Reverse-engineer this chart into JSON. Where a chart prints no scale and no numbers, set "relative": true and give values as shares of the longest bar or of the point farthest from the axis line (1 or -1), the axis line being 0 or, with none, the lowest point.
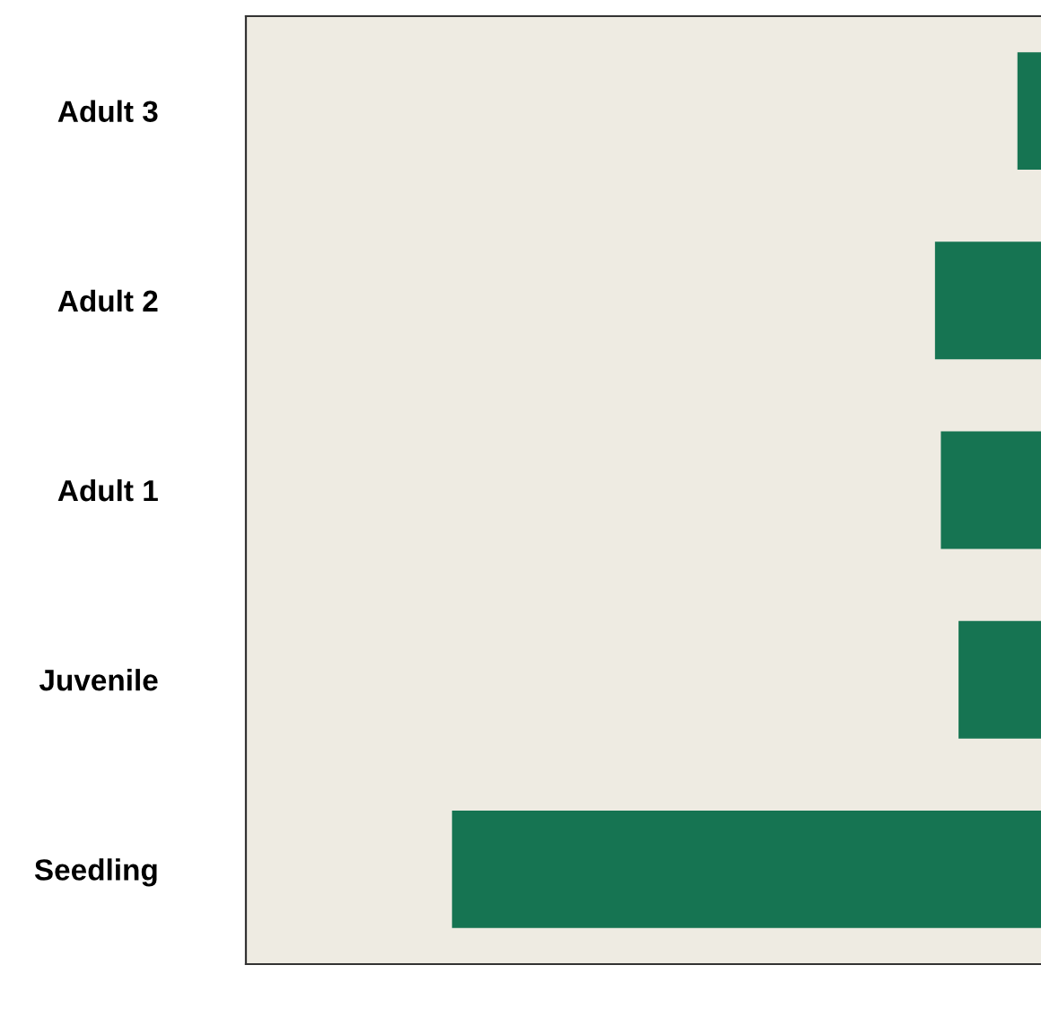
{
  "chart_data": {
    "type": "bar",
    "orientation": "horizontal",
    "relative": true,
    "categories": [
      "Adult 3",
      "Adult 2",
      "Adult 1",
      "Juvenile",
      "Seedling"
    ],
    "values": [
      -0.04,
      -0.18,
      -0.17,
      -0.14,
      -1
    ],
    "color": "#167452",
    "grid": false,
    "legend": false
  }
}
